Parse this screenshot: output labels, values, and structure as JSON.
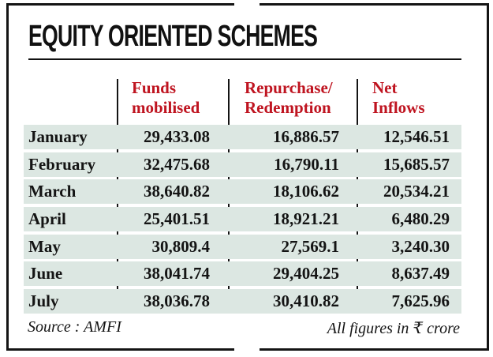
{
  "title": "EQUITY ORIENTED SCHEMES",
  "columns": [
    {
      "line1": "Funds",
      "line2": "mobilised"
    },
    {
      "line1": "Repurchase/",
      "line2": "Redemption"
    },
    {
      "line1": "Net",
      "line2": "Inflows"
    }
  ],
  "rows": [
    {
      "month": "January",
      "funds": "29,433.08",
      "repurchase": "16,886.57",
      "net": "12,546.51"
    },
    {
      "month": "February",
      "funds": "32,475.68",
      "repurchase": "16,790.11",
      "net": "15,685.57"
    },
    {
      "month": "March",
      "funds": "38,640.82",
      "repurchase": "18,106.62",
      "net": "20,534.21"
    },
    {
      "month": "April",
      "funds": "25,401.51",
      "repurchase": "18,921.21",
      "net": "6,480.29"
    },
    {
      "month": "May",
      "funds": "30,809.4",
      "repurchase": "27,569.1",
      "net": "3,240.30"
    },
    {
      "month": "June",
      "funds": "38,041.74",
      "repurchase": "29,404.25",
      "net": "8,637.49"
    },
    {
      "month": "July",
      "funds": "38,036.78",
      "repurchase": "30,410.82",
      "net": "7,625.96"
    }
  ],
  "footer": {
    "source": "Source : AMFI",
    "note": "All figures in ₹ crore"
  },
  "colors": {
    "accent_red": "#bf1420",
    "row_band": "#dce7e2",
    "ink": "#141414"
  },
  "chart_data": {
    "type": "table",
    "title": "EQUITY ORIENTED SCHEMES",
    "columns": [
      "Month",
      "Funds mobilised",
      "Repurchase/Redemption",
      "Net Inflows"
    ],
    "rows": [
      [
        "January",
        29433.08,
        16886.57,
        12546.51
      ],
      [
        "February",
        32475.68,
        16790.11,
        15685.57
      ],
      [
        "March",
        38640.82,
        18106.62,
        20534.21
      ],
      [
        "April",
        25401.51,
        18921.21,
        6480.29
      ],
      [
        "May",
        30809.4,
        27569.1,
        3240.3
      ],
      [
        "June",
        38041.74,
        29404.25,
        8637.49
      ],
      [
        "July",
        38036.78,
        30410.82,
        7625.96
      ]
    ],
    "units": "₹ crore",
    "source": "AMFI"
  }
}
